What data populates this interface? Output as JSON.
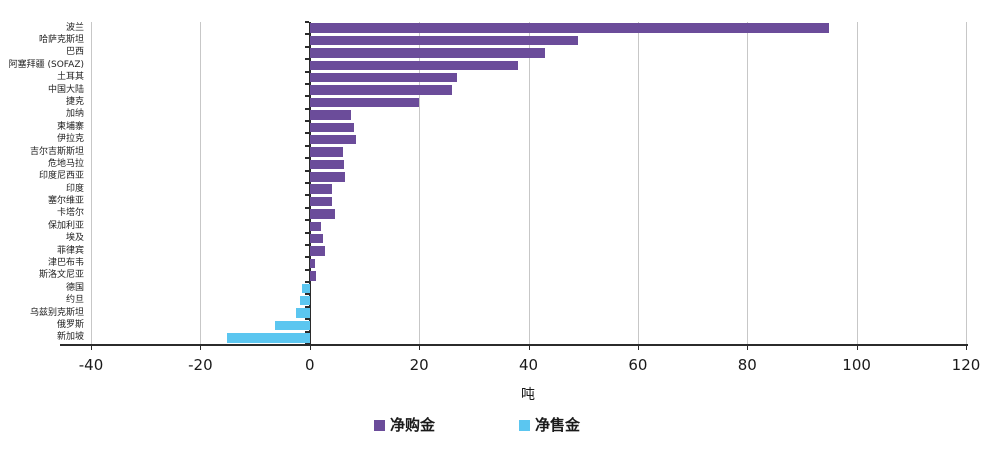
{
  "chart_data": {
    "type": "bar",
    "orientation": "horizontal",
    "title": "",
    "xlabel": "吨",
    "xlim": [
      -40,
      120
    ],
    "xticks": [
      -40,
      -20,
      0,
      20,
      40,
      60,
      80,
      100,
      120
    ],
    "grid": true,
    "legend_position": "bottom",
    "categories": [
      "波兰",
      "哈萨克斯坦",
      "巴西",
      "阿塞拜疆 (SOFAZ)",
      "土耳其",
      "中国大陆",
      "捷克",
      "加纳",
      "柬埔寨",
      "伊拉克",
      "吉尔吉斯斯坦",
      "危地马拉",
      "印度尼西亚",
      "印度",
      "塞尔维亚",
      "卡塔尔",
      "保加利亚",
      "埃及",
      "菲律宾",
      "津巴布韦",
      "斯洛文尼亚",
      "德国",
      "约旦",
      "乌兹别克斯坦",
      "俄罗斯",
      "新加坡"
    ],
    "values": [
      95,
      49,
      43,
      38,
      27,
      26,
      20,
      7.5,
      8.1,
      8.5,
      6.0,
      6.3,
      6.5,
      4.0,
      4.1,
      4.6,
      2.1,
      2.4,
      2.7,
      1.0,
      1.2,
      -1.4,
      -1.7,
      -2.6,
      -6.4,
      -15.1
    ],
    "series": [
      {
        "name": "净购金",
        "role": "positive",
        "color": "#6B4C9A"
      },
      {
        "name": "净售金",
        "role": "negative",
        "color": "#5BC6F0"
      }
    ]
  },
  "legend": {
    "purchases_label": "净购金",
    "sales_label": "净售金"
  },
  "axis": {
    "unit_label": "吨"
  },
  "colors": {
    "purchase_purple": "#6B4C9A",
    "sale_blue": "#5BC6F0",
    "gridline": "#C7C7C7",
    "axis_line": "#2B2B2B"
  }
}
